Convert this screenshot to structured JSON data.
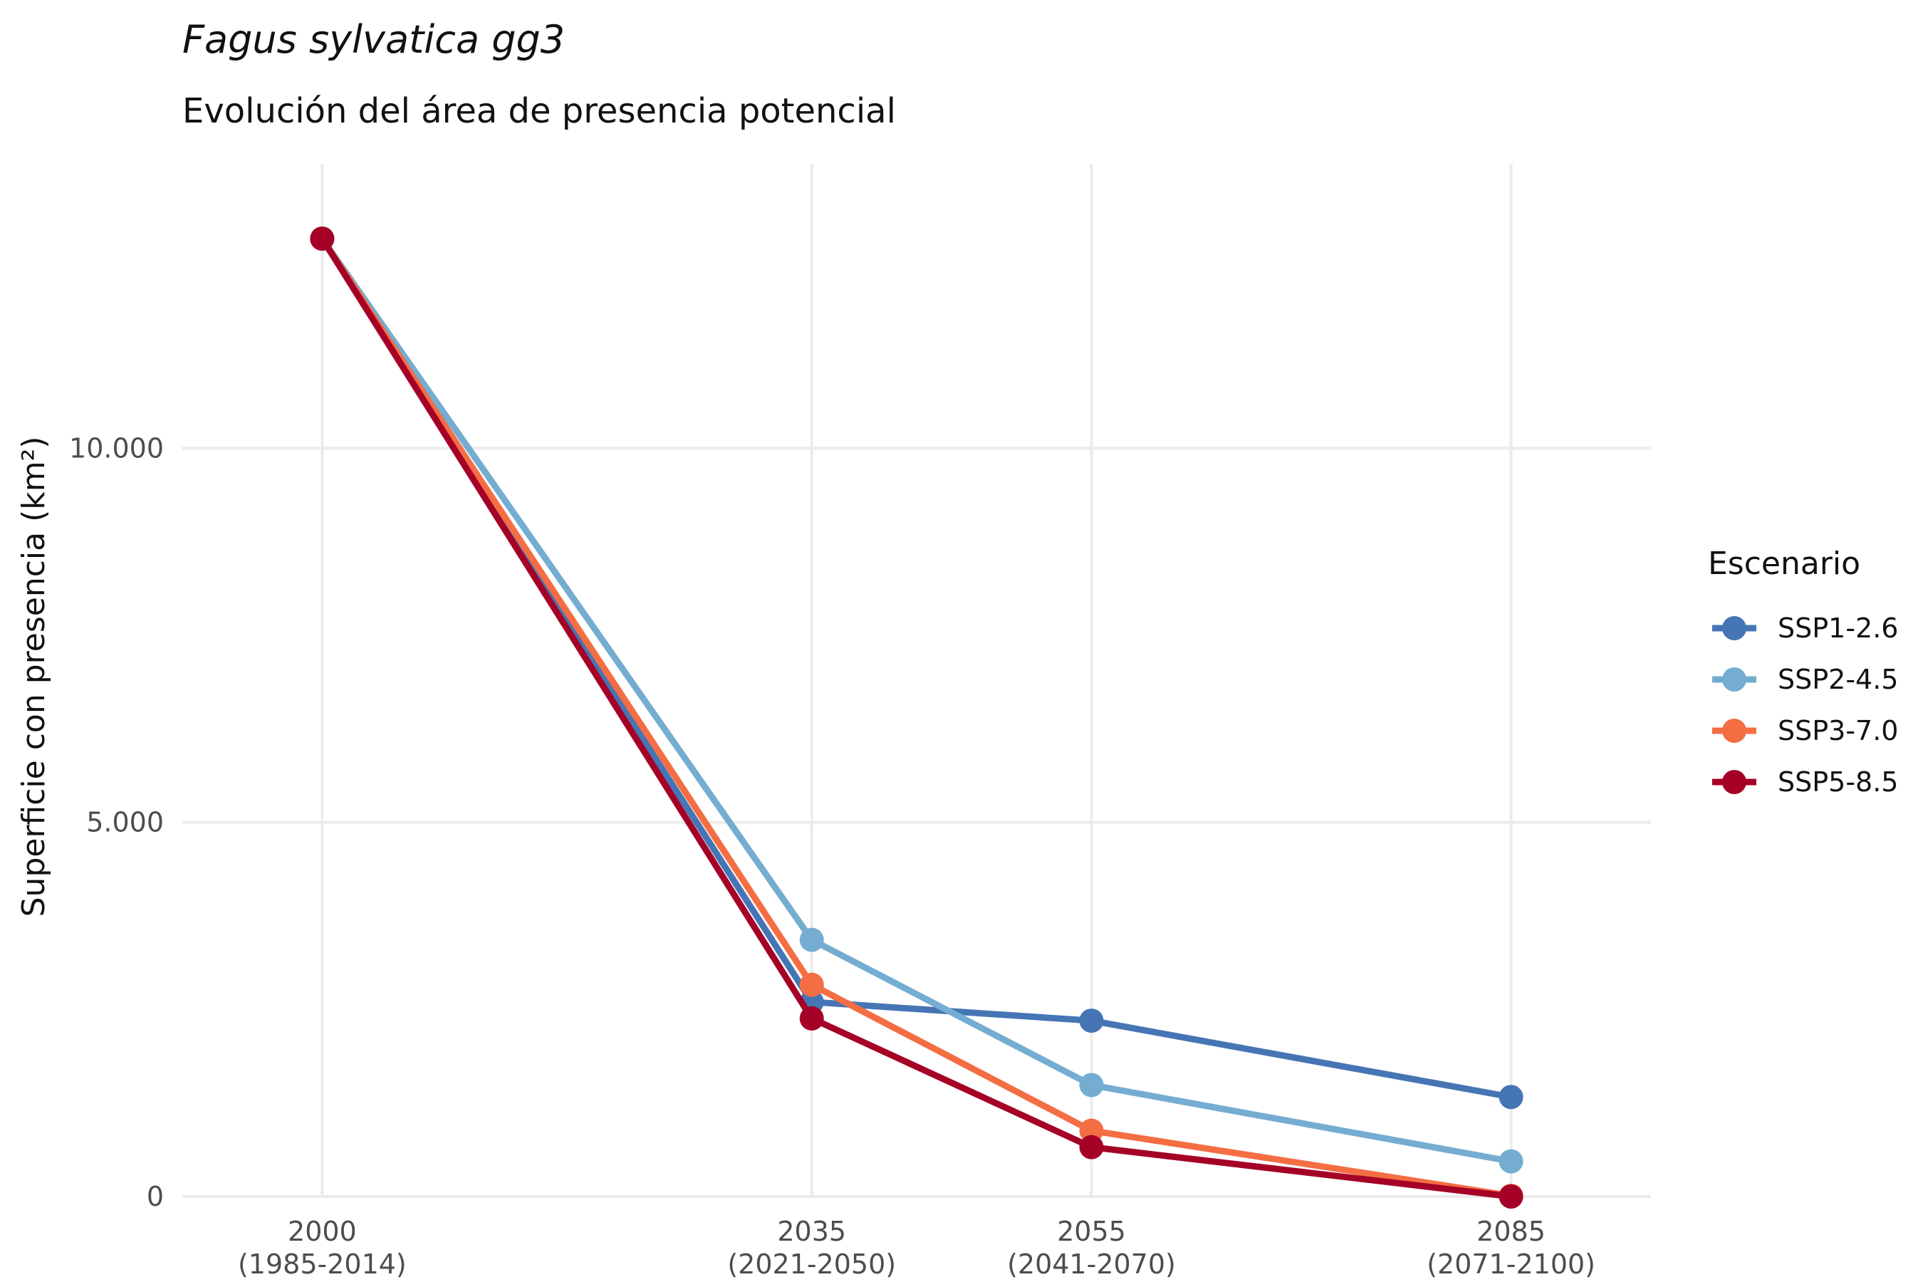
{
  "chart_data": {
    "type": "line",
    "title": "Fagus sylvatica gg3",
    "subtitle": "Evolución del área de presencia potencial",
    "ylabel": "Superficie con presencia (km²)",
    "xlabel": "",
    "x": [
      2000,
      2035,
      2055,
      2085
    ],
    "x_tick_labels": [
      [
        "2000",
        "(1985-2014)"
      ],
      [
        "2035",
        "(2021-2050)"
      ],
      [
        "2055",
        "(2041-2070)"
      ],
      [
        "2085",
        "(2071-2100)"
      ]
    ],
    "y_ticks": [
      0,
      5000,
      10000
    ],
    "y_tick_labels": [
      "0",
      "5.000",
      "10.000"
    ],
    "xlim": [
      1990,
      2095
    ],
    "ylim": [
      0,
      13800
    ],
    "grid": true,
    "legend": {
      "title": "Escenario",
      "position": "right"
    },
    "series": [
      {
        "name": "SSP1-2.6",
        "color": "#4575b4",
        "values": [
          12800,
          2600,
          2350,
          1330
        ]
      },
      {
        "name": "SSP2-4.5",
        "color": "#74add1",
        "values": [
          12800,
          3430,
          1490,
          470
        ]
      },
      {
        "name": "SSP3-7.0",
        "color": "#f46d43",
        "values": [
          12800,
          2830,
          880,
          10
        ]
      },
      {
        "name": "SSP5-8.5",
        "color": "#a50026",
        "values": [
          12800,
          2380,
          660,
          0
        ]
      }
    ]
  }
}
